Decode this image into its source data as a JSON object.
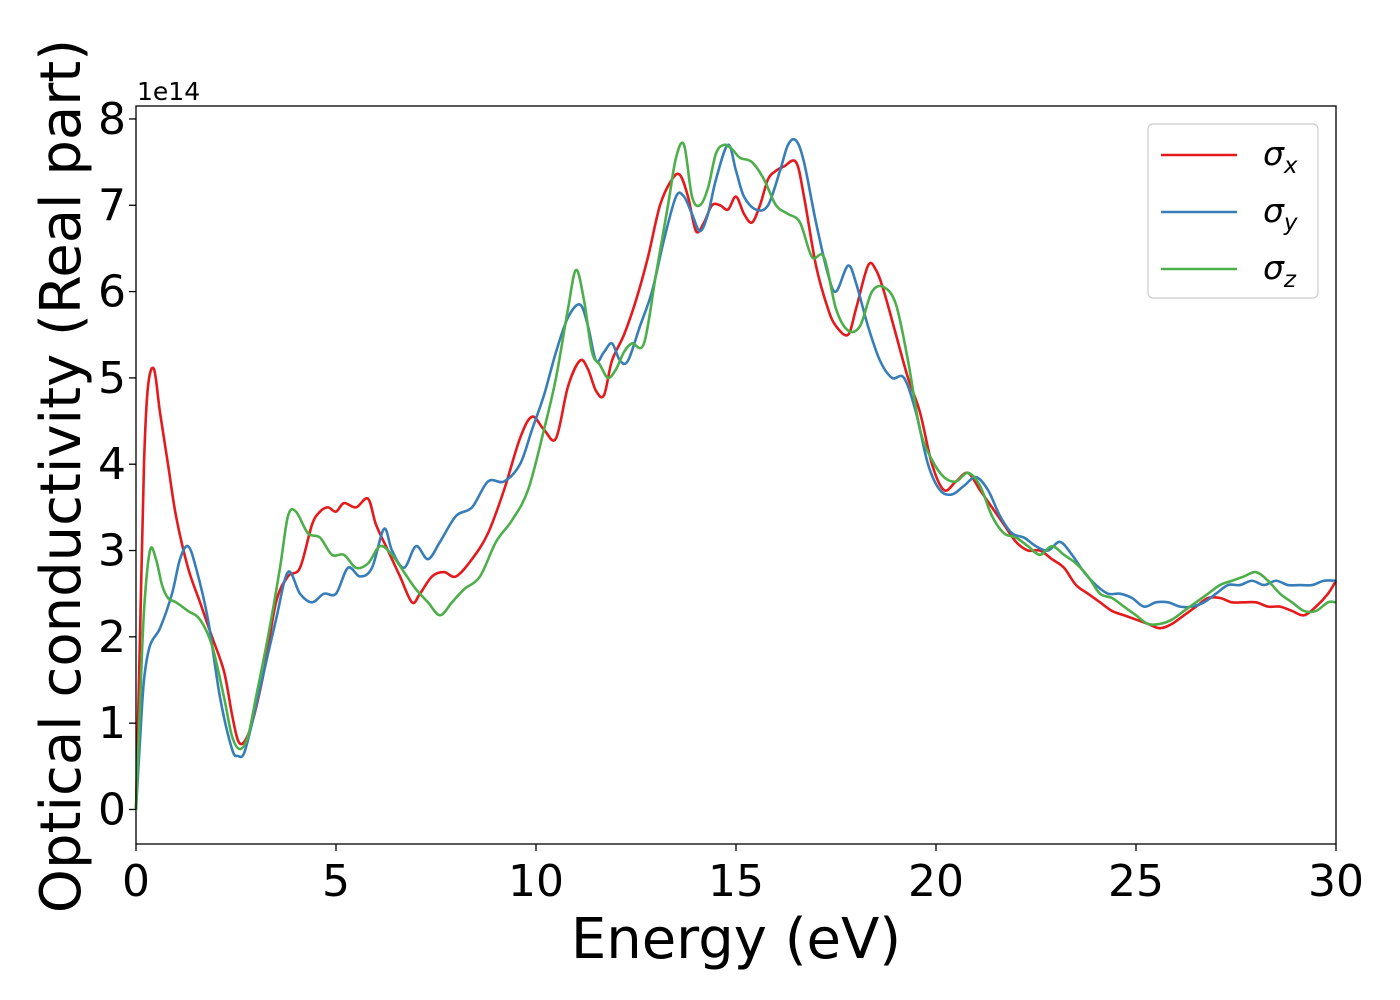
{
  "chart_data": {
    "type": "line",
    "xlabel": "Energy (eV)",
    "ylabel": "Optical conductivity (Real part)",
    "scale_label": "1e14",
    "xlim": [
      0,
      30
    ],
    "ylim": [
      -0.4,
      8.15
    ],
    "xticks": [
      0,
      5,
      10,
      15,
      20,
      25,
      30
    ],
    "yticks": [
      0,
      1,
      2,
      3,
      4,
      5,
      6,
      7,
      8
    ],
    "grid": false,
    "legend_position": "top-right",
    "series": [
      {
        "name": "σx",
        "symbol": "σ",
        "subscript": "x",
        "color": "#e41a1c",
        "x": [
          0,
          0.1,
          0.2,
          0.3,
          0.45,
          0.6,
          0.8,
          1.0,
          1.3,
          1.6,
          1.9,
          2.2,
          2.4,
          2.55,
          2.7,
          2.9,
          3.2,
          3.5,
          3.8,
          4.1,
          4.4,
          4.6,
          4.8,
          5.0,
          5.2,
          5.5,
          5.8,
          6.0,
          6.3,
          6.6,
          6.9,
          7.1,
          7.4,
          7.7,
          8.0,
          8.4,
          8.8,
          9.2,
          9.6,
          9.9,
          10.2,
          10.5,
          10.8,
          11.1,
          11.3,
          11.5,
          11.7,
          11.9,
          12.2,
          12.5,
          12.8,
          13.1,
          13.4,
          13.6,
          13.8,
          14.0,
          14.2,
          14.4,
          14.6,
          14.8,
          15.0,
          15.2,
          15.4,
          15.6,
          15.8,
          16.0,
          16.2,
          16.5,
          16.7,
          17.0,
          17.3,
          17.5,
          17.8,
          18.0,
          18.3,
          18.5,
          18.7,
          19.0,
          19.3,
          19.6,
          19.9,
          20.2,
          20.5,
          20.8,
          21.1,
          21.4,
          21.7,
          22.0,
          22.3,
          22.6,
          22.9,
          23.2,
          23.5,
          23.8,
          24.1,
          24.4,
          24.7,
          25.0,
          25.3,
          25.6,
          25.9,
          26.2,
          26.5,
          26.8,
          27.1,
          27.4,
          27.7,
          28.0,
          28.3,
          28.6,
          28.9,
          29.2,
          29.5,
          29.8,
          30.0
        ],
        "y": [
          0.0,
          2.0,
          4.0,
          4.9,
          5.1,
          4.6,
          4.0,
          3.4,
          2.8,
          2.4,
          2.0,
          1.6,
          1.1,
          0.8,
          0.78,
          1.0,
          1.6,
          2.4,
          2.7,
          2.8,
          3.3,
          3.45,
          3.5,
          3.45,
          3.55,
          3.5,
          3.6,
          3.3,
          3.0,
          2.7,
          2.4,
          2.5,
          2.7,
          2.75,
          2.7,
          2.9,
          3.2,
          3.7,
          4.3,
          4.55,
          4.4,
          4.3,
          4.9,
          5.2,
          5.1,
          4.85,
          4.8,
          5.2,
          5.5,
          5.9,
          6.4,
          7.0,
          7.3,
          7.35,
          7.1,
          6.7,
          6.8,
          7.0,
          7.0,
          6.95,
          7.1,
          6.9,
          6.8,
          7.0,
          7.3,
          7.4,
          7.45,
          7.5,
          7.1,
          6.3,
          5.8,
          5.6,
          5.5,
          5.8,
          6.3,
          6.25,
          6.0,
          5.5,
          5.0,
          4.6,
          4.0,
          3.7,
          3.8,
          3.9,
          3.7,
          3.5,
          3.3,
          3.1,
          3.0,
          3.0,
          2.9,
          2.8,
          2.6,
          2.5,
          2.4,
          2.3,
          2.25,
          2.2,
          2.15,
          2.1,
          2.15,
          2.25,
          2.35,
          2.45,
          2.45,
          2.4,
          2.4,
          2.4,
          2.35,
          2.35,
          2.3,
          2.25,
          2.35,
          2.5,
          2.65
        ]
      },
      {
        "name": "σy",
        "symbol": "σ",
        "subscript": "y",
        "color": "#377eb8",
        "x": [
          0,
          0.1,
          0.2,
          0.35,
          0.6,
          0.9,
          1.1,
          1.3,
          1.5,
          1.8,
          2.1,
          2.4,
          2.55,
          2.7,
          2.9,
          3.2,
          3.5,
          3.8,
          4.1,
          4.4,
          4.7,
          5.0,
          5.3,
          5.6,
          5.9,
          6.2,
          6.4,
          6.7,
          7.0,
          7.3,
          7.6,
          8.0,
          8.4,
          8.8,
          9.2,
          9.6,
          9.9,
          10.2,
          10.5,
          10.8,
          11.1,
          11.3,
          11.5,
          11.7,
          11.9,
          12.1,
          12.3,
          12.6,
          12.9,
          13.2,
          13.5,
          13.7,
          13.9,
          14.1,
          14.3,
          14.5,
          14.8,
          15.0,
          15.2,
          15.5,
          15.8,
          16.1,
          16.3,
          16.5,
          16.7,
          17.0,
          17.3,
          17.5,
          17.8,
          18.0,
          18.3,
          18.6,
          18.9,
          19.2,
          19.5,
          19.8,
          20.1,
          20.4,
          20.7,
          21.0,
          21.3,
          21.6,
          21.9,
          22.2,
          22.5,
          22.8,
          23.1,
          23.4,
          23.7,
          24.0,
          24.3,
          24.6,
          24.9,
          25.2,
          25.5,
          25.8,
          26.1,
          26.4,
          26.7,
          27.0,
          27.3,
          27.6,
          27.9,
          28.2,
          28.5,
          28.8,
          29.1,
          29.4,
          29.7,
          30.0
        ],
        "y": [
          0.0,
          0.8,
          1.5,
          1.9,
          2.1,
          2.5,
          2.9,
          3.05,
          2.8,
          2.2,
          1.3,
          0.7,
          0.62,
          0.65,
          1.0,
          1.6,
          2.2,
          2.75,
          2.5,
          2.4,
          2.5,
          2.5,
          2.8,
          2.7,
          2.8,
          3.25,
          3.0,
          2.8,
          3.05,
          2.9,
          3.1,
          3.4,
          3.5,
          3.8,
          3.8,
          4.0,
          4.4,
          4.8,
          5.3,
          5.7,
          5.85,
          5.6,
          5.2,
          5.3,
          5.4,
          5.2,
          5.2,
          5.6,
          6.0,
          6.6,
          7.1,
          7.1,
          6.9,
          6.7,
          6.9,
          7.3,
          7.7,
          7.4,
          7.1,
          6.95,
          7.0,
          7.4,
          7.7,
          7.75,
          7.5,
          6.8,
          6.2,
          6.0,
          6.3,
          6.1,
          5.6,
          5.2,
          5.0,
          5.0,
          4.6,
          4.0,
          3.7,
          3.65,
          3.75,
          3.85,
          3.7,
          3.4,
          3.2,
          3.15,
          3.05,
          3.0,
          3.1,
          2.95,
          2.75,
          2.6,
          2.5,
          2.5,
          2.45,
          2.35,
          2.4,
          2.4,
          2.35,
          2.35,
          2.4,
          2.5,
          2.6,
          2.6,
          2.65,
          2.6,
          2.65,
          2.6,
          2.6,
          2.6,
          2.65,
          2.65
        ]
      },
      {
        "name": "σz",
        "symbol": "σ",
        "subscript": "z",
        "color": "#4daf4a",
        "x": [
          0,
          0.1,
          0.2,
          0.35,
          0.5,
          0.65,
          0.8,
          1.0,
          1.3,
          1.6,
          1.9,
          2.2,
          2.4,
          2.6,
          2.8,
          3.0,
          3.3,
          3.6,
          3.8,
          4.0,
          4.3,
          4.6,
          4.9,
          5.2,
          5.5,
          5.8,
          6.1,
          6.4,
          6.7,
          7.0,
          7.3,
          7.6,
          7.9,
          8.2,
          8.6,
          9.0,
          9.4,
          9.8,
          10.2,
          10.5,
          10.8,
          11.0,
          11.2,
          11.4,
          11.6,
          11.8,
          12.0,
          12.2,
          12.4,
          12.7,
          13.0,
          13.3,
          13.5,
          13.7,
          13.9,
          14.1,
          14.3,
          14.5,
          14.7,
          14.9,
          15.1,
          15.4,
          15.7,
          16.0,
          16.3,
          16.6,
          16.9,
          17.2,
          17.5,
          17.8,
          18.1,
          18.4,
          18.7,
          19.0,
          19.3,
          19.6,
          19.9,
          20.2,
          20.5,
          20.8,
          21.1,
          21.4,
          21.7,
          22.0,
          22.3,
          22.6,
          22.9,
          23.2,
          23.5,
          23.8,
          24.1,
          24.4,
          24.7,
          25.0,
          25.3,
          25.6,
          25.9,
          26.2,
          26.5,
          26.8,
          27.1,
          27.4,
          27.7,
          28.0,
          28.3,
          28.6,
          28.9,
          29.2,
          29.5,
          29.8,
          30.0
        ],
        "y": [
          0.0,
          1.2,
          2.3,
          3.0,
          2.9,
          2.6,
          2.45,
          2.4,
          2.3,
          2.2,
          1.9,
          1.3,
          0.85,
          0.7,
          0.85,
          1.3,
          2.0,
          2.8,
          3.4,
          3.45,
          3.2,
          3.15,
          2.95,
          2.95,
          2.8,
          2.85,
          3.05,
          2.95,
          2.75,
          2.55,
          2.4,
          2.25,
          2.4,
          2.55,
          2.7,
          3.1,
          3.35,
          3.7,
          4.4,
          5.0,
          5.8,
          6.25,
          5.9,
          5.3,
          5.15,
          5.0,
          5.1,
          5.3,
          5.4,
          5.4,
          6.2,
          7.0,
          7.55,
          7.7,
          7.1,
          7.0,
          7.2,
          7.6,
          7.7,
          7.65,
          7.55,
          7.5,
          7.3,
          7.0,
          6.9,
          6.8,
          6.4,
          6.4,
          5.8,
          5.55,
          5.6,
          6.0,
          6.05,
          5.85,
          5.2,
          4.4,
          4.05,
          3.85,
          3.8,
          3.9,
          3.75,
          3.4,
          3.2,
          3.15,
          3.05,
          2.95,
          3.05,
          2.95,
          2.85,
          2.7,
          2.5,
          2.45,
          2.35,
          2.25,
          2.15,
          2.15,
          2.2,
          2.3,
          2.4,
          2.5,
          2.6,
          2.65,
          2.7,
          2.75,
          2.65,
          2.5,
          2.4,
          2.3,
          2.3,
          2.4,
          2.4
        ]
      }
    ]
  }
}
